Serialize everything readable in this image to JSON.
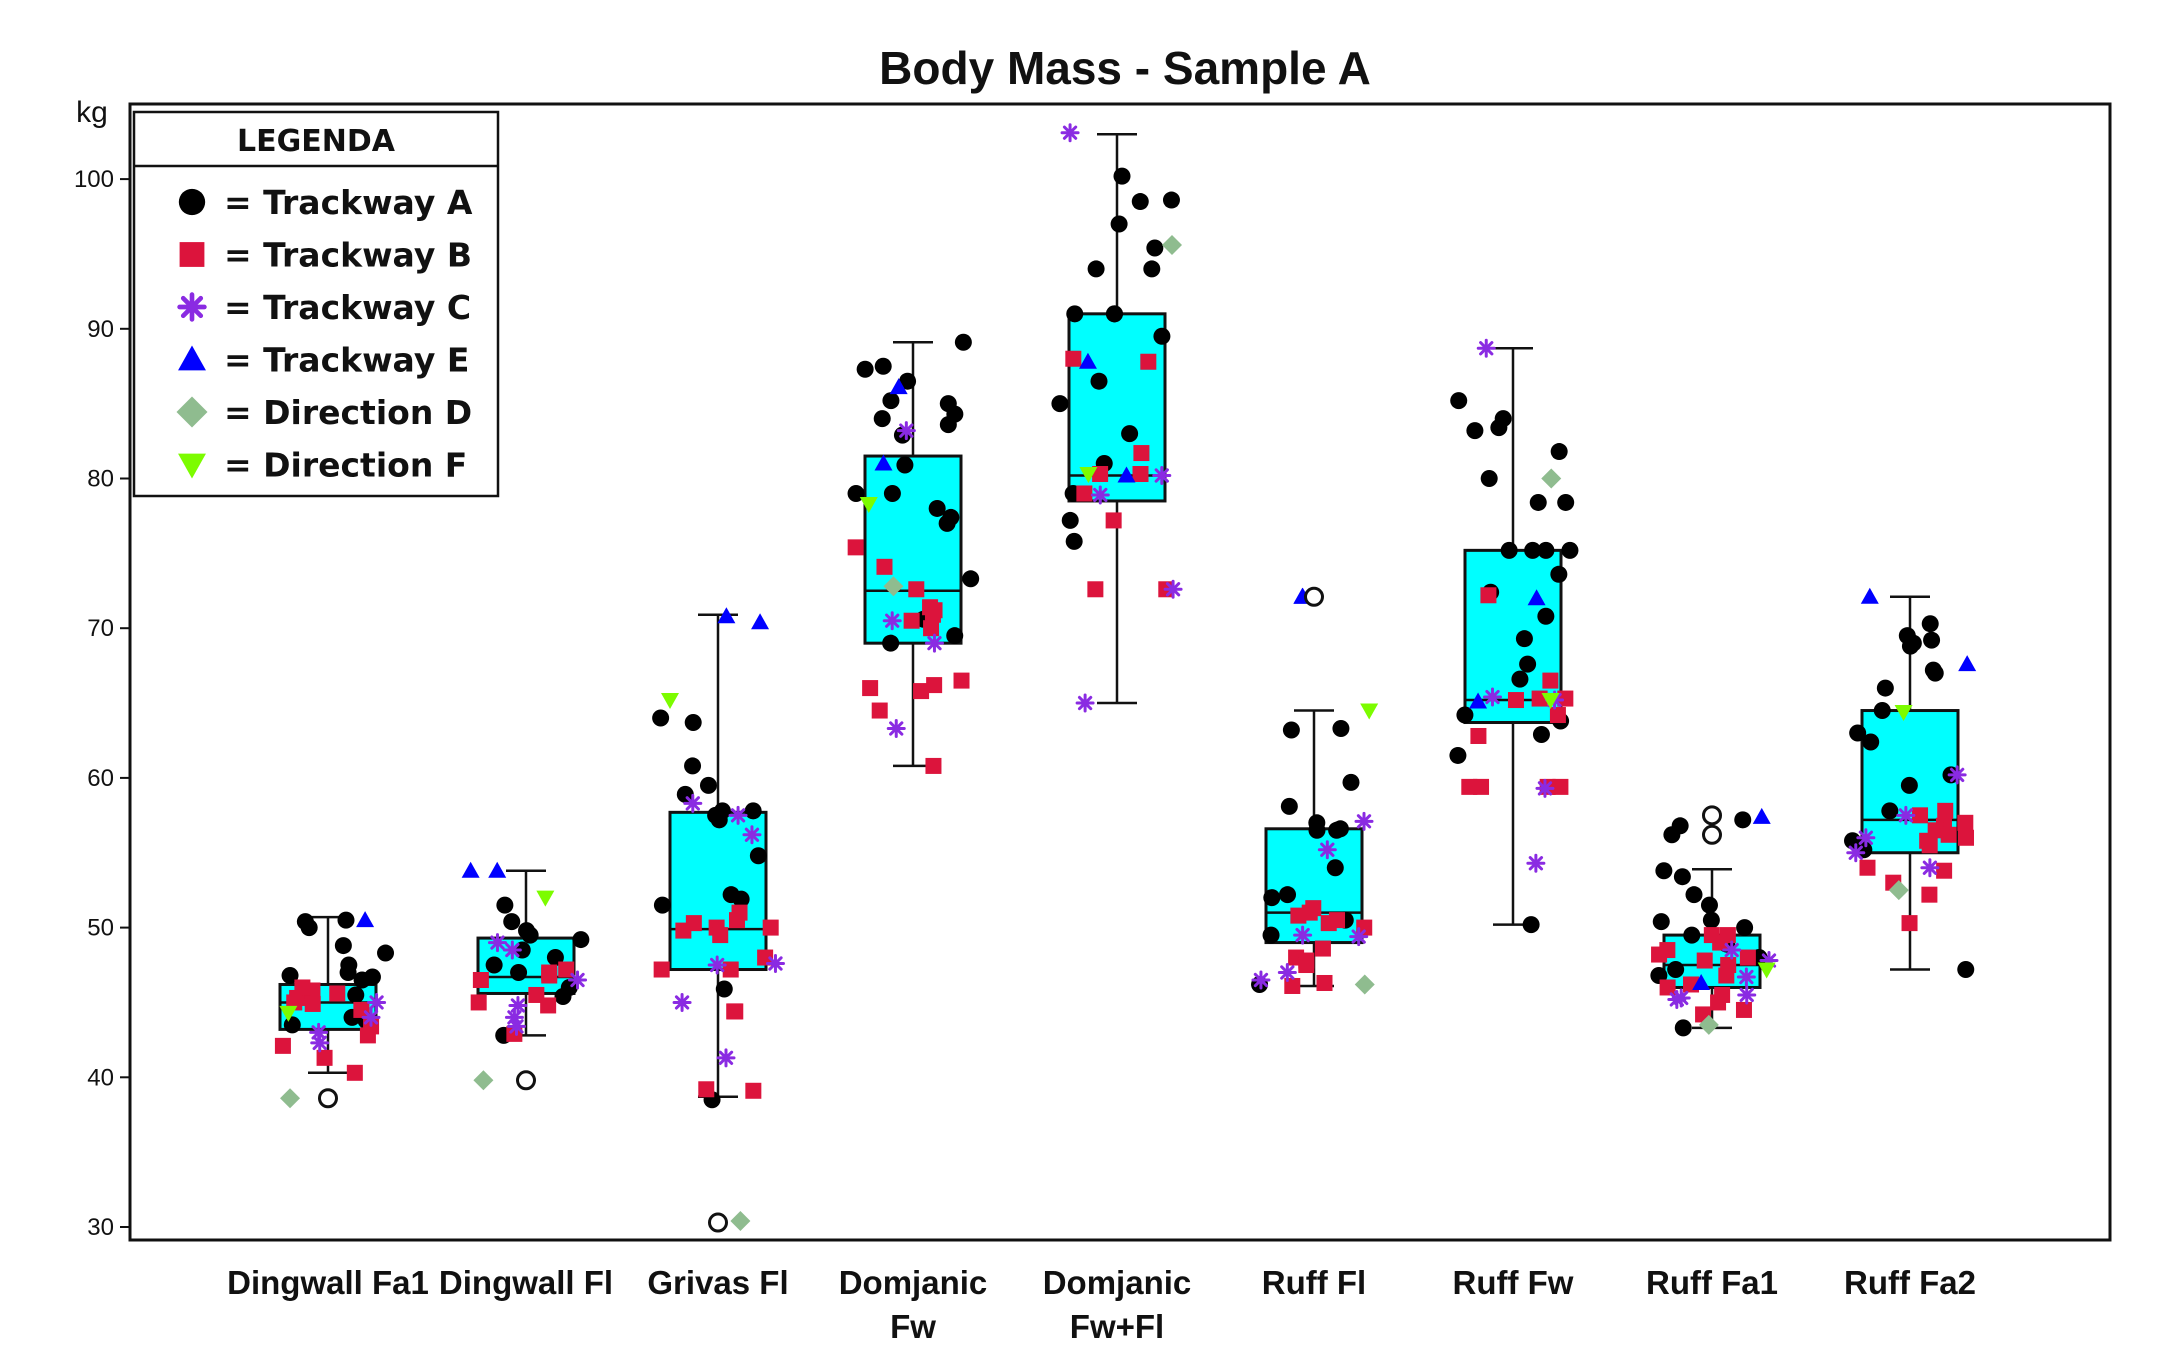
{
  "chart_data": {
    "type": "box-plot-with-jittered-points",
    "title": "Body Mass - Sample A",
    "ylabel": "kg",
    "xlabel": "",
    "ylim": [
      29,
      105
    ],
    "yticks": [
      30,
      40,
      50,
      60,
      70,
      80,
      90,
      100
    ],
    "grid": false,
    "legend": {
      "title": "LEGENDA",
      "placement": "top-left",
      "entries": [
        {
          "key": "A",
          "label": "= Trackway A",
          "marker": "circle",
          "color": "#000000"
        },
        {
          "key": "B",
          "label": "= Trackway B",
          "marker": "square",
          "color": "#dc143c"
        },
        {
          "key": "C",
          "label": "= Trackway C",
          "marker": "asterisk",
          "color": "#8a2be2"
        },
        {
          "key": "E",
          "label": "= Trackway E",
          "marker": "triangle-up",
          "color": "#0000ff"
        },
        {
          "key": "D",
          "label": "= Direction D",
          "marker": "diamond",
          "color": "#8fbc8f"
        },
        {
          "key": "F",
          "label": "= Direction F",
          "marker": "triangle-down",
          "color": "#7cfc00"
        }
      ]
    },
    "box_fill": "#00ffff",
    "categories": [
      {
        "label": [
          "Dingwall Fa1"
        ],
        "box": {
          "whisker_low": 40.3,
          "q1": 43.2,
          "median": 45.0,
          "q3": 46.2,
          "whisker_high": 50.7
        },
        "outliers": [
          38.6
        ],
        "points": {
          "A": [
            50.5,
            50.4,
            48.8,
            48.3,
            47.5,
            47.0,
            46.8,
            46.7,
            44.0,
            43.8,
            45.5,
            50.0,
            46.5,
            43.5
          ],
          "B": [
            45.6,
            45.3,
            45.0,
            44.5,
            43.4,
            42.8,
            42.1,
            41.3,
            40.3,
            45.8,
            46.0,
            44.9
          ],
          "C": [
            45.0,
            44.0,
            43.0,
            42.3
          ],
          "E": [
            50.5
          ],
          "D": [
            38.6
          ],
          "F": [
            44.3
          ]
        }
      },
      {
        "label": [
          "Dingwall Fl"
        ],
        "box": {
          "whisker_low": 42.8,
          "q1": 45.6,
          "median": 46.7,
          "q3": 49.3,
          "whisker_high": 53.8
        },
        "outliers": [
          39.8
        ],
        "points": {
          "A": [
            51.5,
            50.4,
            49.8,
            49.2,
            48.5,
            48.0,
            47.5,
            47.0,
            46.0,
            45.4,
            42.8,
            49.5
          ],
          "B": [
            47.2,
            46.8,
            46.5,
            45.5,
            45.0,
            44.8,
            42.9,
            47.0
          ],
          "C": [
            49.0,
            48.5,
            44.0,
            43.4,
            46.5,
            44.8
          ],
          "E": [
            53.8,
            53.8
          ],
          "D": [
            39.8
          ],
          "F": [
            52.0
          ]
        }
      },
      {
        "label": [
          "Grivas Fl"
        ],
        "box": {
          "whisker_low": 38.7,
          "q1": 47.2,
          "median": 49.9,
          "q3": 57.7,
          "whisker_high": 70.9
        },
        "outliers": [
          30.3
        ],
        "points": {
          "A": [
            64.0,
            63.7,
            60.8,
            59.5,
            58.9,
            57.8,
            57.5,
            57.8,
            54.8,
            52.2,
            51.9,
            51.5,
            45.9,
            38.5,
            57.2
          ],
          "B": [
            50.5,
            50.3,
            50.0,
            50.0,
            49.8,
            49.5,
            48.0,
            47.2,
            47.2,
            44.4,
            44.4,
            39.2,
            39.1,
            51.0
          ],
          "C": [
            58.3,
            56.2,
            47.6,
            47.5,
            45.0,
            41.3,
            57.5
          ],
          "E": [
            70.4,
            70.8
          ],
          "D": [
            30.4
          ],
          "F": [
            65.2
          ]
        }
      },
      {
        "label": [
          "Domjanic",
          "Fw"
        ],
        "box": {
          "whisker_low": 60.8,
          "q1": 69.0,
          "median": 72.5,
          "q3": 81.5,
          "whisker_high": 89.1
        },
        "outliers": [],
        "points": {
          "A": [
            89.1,
            87.3,
            87.5,
            86.5,
            85.0,
            85.2,
            84.3,
            84.0,
            83.6,
            82.9,
            80.9,
            79.0,
            79.0,
            78.0,
            77.4,
            77.0,
            73.3,
            70.6,
            69.5,
            69.0
          ],
          "B": [
            75.4,
            74.1,
            72.6,
            71.4,
            71.2,
            70.9,
            70.5,
            70.0,
            66.5,
            66.2,
            66.0,
            65.8,
            64.5,
            60.8
          ],
          "C": [
            83.2,
            70.5,
            69.0,
            63.3
          ],
          "E": [
            86.1,
            81.0
          ],
          "D": [
            72.8
          ],
          "F": [
            78.3
          ]
        }
      },
      {
        "label": [
          "Domjanic",
          "Fw+Fl"
        ],
        "box": {
          "whisker_low": 65.0,
          "q1": 78.5,
          "median": 80.2,
          "q3": 91.0,
          "whisker_high": 103.0
        },
        "outliers": [],
        "points": {
          "A": [
            100.2,
            98.6,
            98.5,
            97.0,
            95.4,
            94.0,
            94.0,
            91.0,
            91.0,
            91.0,
            89.5,
            86.5,
            85.0,
            83.0,
            81.0,
            77.2,
            75.8,
            79.0
          ],
          "B": [
            88.0,
            87.8,
            81.7,
            80.3,
            80.3,
            79.0,
            77.2,
            72.6,
            72.6
          ],
          "C": [
            103.1,
            80.2,
            78.9,
            72.6,
            65.0
          ],
          "E": [
            87.8,
            80.2
          ],
          "D": [
            95.6
          ],
          "F": [
            80.3
          ]
        }
      },
      {
        "label": [
          "Ruff  Fl"
        ],
        "box": {
          "whisker_low": 46.1,
          "q1": 49.0,
          "median": 51.0,
          "q3": 56.6,
          "whisker_high": 64.5
        },
        "outliers": [
          72.1
        ],
        "points": {
          "A": [
            63.3,
            63.2,
            59.7,
            58.1,
            57.0,
            56.6,
            56.5,
            56.5,
            54.0,
            52.2,
            52.0,
            50.5,
            46.2,
            49.5
          ],
          "B": [
            51.3,
            51.0,
            50.8,
            50.5,
            50.3,
            48.6,
            48.0,
            47.8,
            47.5,
            46.3,
            46.1,
            50.0
          ],
          "C": [
            57.1,
            55.2,
            49.5,
            49.4,
            47.0,
            46.5
          ],
          "E": [
            72.1,
            72.1
          ],
          "D": [
            46.2
          ],
          "F": [
            64.5
          ]
        }
      },
      {
        "label": [
          "Ruff Fw"
        ],
        "box": {
          "whisker_low": 50.2,
          "q1": 63.7,
          "median": 65.2,
          "q3": 75.2,
          "whisker_high": 88.7
        },
        "outliers": [],
        "points": {
          "A": [
            85.2,
            84.0,
            83.4,
            83.2,
            81.8,
            80.0,
            78.4,
            78.4,
            75.2,
            75.2,
            75.2,
            75.2,
            73.6,
            72.4,
            70.8,
            69.3,
            67.6,
            66.6,
            64.2,
            63.8,
            62.9,
            61.5,
            50.2
          ],
          "B": [
            72.2,
            66.5,
            65.3,
            65.3,
            65.2,
            64.2,
            62.8,
            59.4,
            59.4,
            59.4,
            59.4
          ],
          "C": [
            88.7,
            65.4,
            65.2,
            59.3,
            54.3
          ],
          "E": [
            72.0,
            65.1
          ],
          "D": [
            80.0
          ],
          "F": [
            65.2
          ]
        }
      },
      {
        "label": [
          "Ruff Fa1"
        ],
        "box": {
          "whisker_low": 43.3,
          "q1": 46.0,
          "median": 47.5,
          "q3": 49.5,
          "whisker_high": 53.9
        },
        "outliers": [
          57.5,
          56.2
        ],
        "points": {
          "A": [
            57.2,
            56.8,
            56.2,
            53.8,
            53.4,
            52.2,
            51.5,
            50.5,
            50.4,
            49.5,
            48.9,
            48.0,
            47.2,
            46.8,
            43.3,
            50.0
          ],
          "B": [
            49.5,
            49.5,
            49.0,
            48.5,
            48.0,
            47.8,
            47.5,
            46.8,
            46.2,
            46.0,
            45.5,
            45.0,
            44.5,
            44.2,
            48.2
          ],
          "C": [
            47.8,
            46.7,
            45.5,
            45.3,
            45.2,
            48.5
          ],
          "E": [
            57.4,
            46.3
          ],
          "D": [
            43.5
          ],
          "F": [
            47.2
          ]
        }
      },
      {
        "label": [
          "Ruff Fa2"
        ],
        "box": {
          "whisker_low": 47.2,
          "q1": 55.0,
          "median": 57.2,
          "q3": 64.5,
          "whisker_high": 72.1
        },
        "outliers": [],
        "points": {
          "A": [
            70.3,
            69.5,
            69.2,
            69.0,
            68.8,
            67.2,
            67.0,
            66.0,
            64.5,
            63.0,
            62.4,
            60.2,
            59.5,
            57.8,
            55.8,
            55.2,
            47.2
          ],
          "B": [
            57.8,
            57.5,
            57.0,
            56.8,
            56.5,
            56.2,
            56.0,
            55.8,
            55.5,
            54.0,
            53.8,
            53.0,
            52.2,
            50.3
          ],
          "C": [
            60.2,
            57.5,
            55.0,
            54.0,
            56.0
          ],
          "E": [
            72.1,
            67.6
          ],
          "D": [
            52.5
          ],
          "F": [
            64.4
          ]
        }
      }
    ]
  }
}
